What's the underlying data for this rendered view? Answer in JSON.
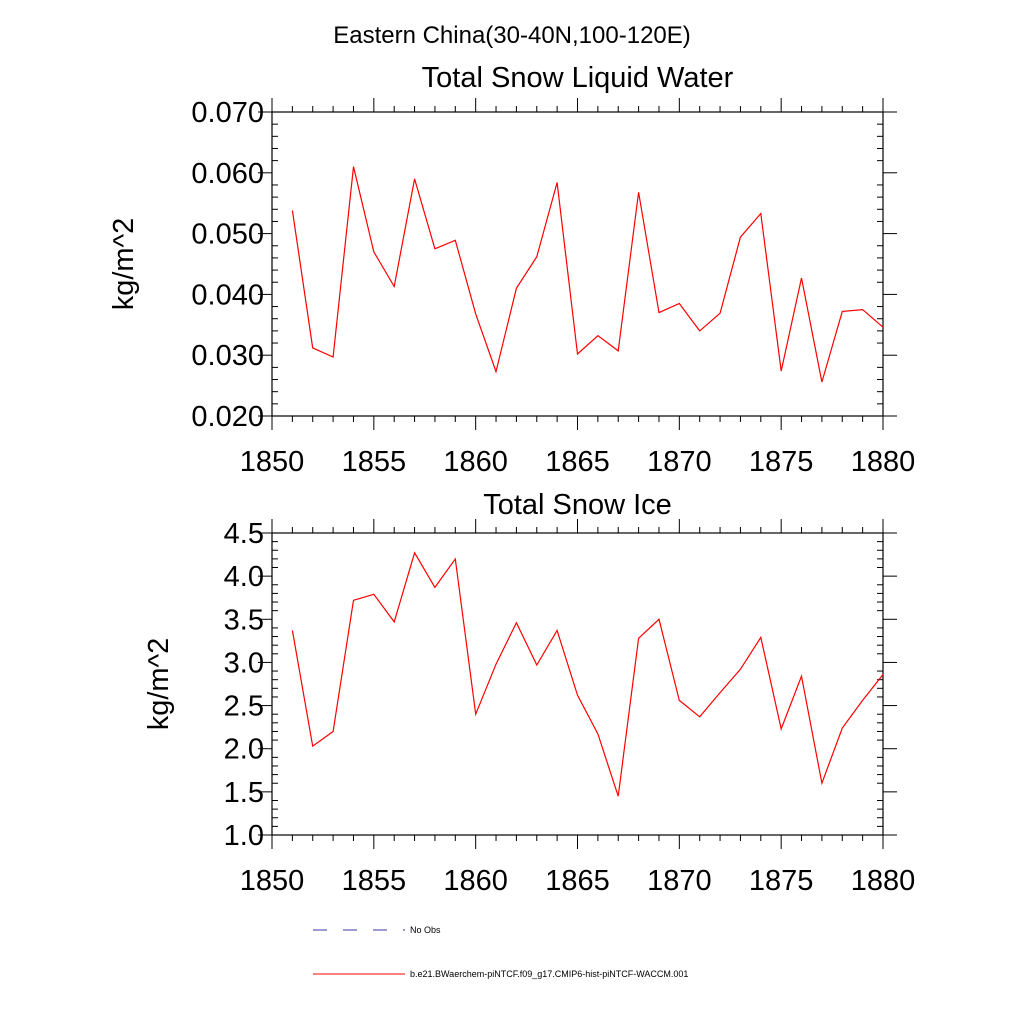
{
  "header": {
    "title": "Eastern China(30-40N,100-120E)"
  },
  "legend": {
    "obs_label": "No Obs",
    "model_label": "b.e21.BWaerchem-piNTCF.f09_g17.CMIP6-hist-piNTCF-WACCM.001",
    "obs_color": "#3a3aa0",
    "model_color": "#ff0000"
  },
  "chart_data": [
    {
      "type": "line",
      "title": "Total Snow Liquid Water",
      "xlabel": "",
      "ylabel": "kg/m^2",
      "xlim": [
        1850,
        1880
      ],
      "ylim": [
        0.02,
        0.07
      ],
      "xticks": [
        "1850",
        "1855",
        "1860",
        "1865",
        "1870",
        "1875",
        "1880"
      ],
      "yticks": [
        "0.020",
        "0.030",
        "0.040",
        "0.050",
        "0.060",
        "0.070"
      ],
      "grid": false,
      "series": [
        {
          "name": "b.e21.BWaerchem-piNTCF.f09_g17.CMIP6-hist-piNTCF-WACCM.001",
          "color": "#ff0000",
          "x": [
            1851,
            1852,
            1853,
            1854,
            1855,
            1856,
            1857,
            1858,
            1859,
            1860,
            1861,
            1862,
            1863,
            1864,
            1865,
            1866,
            1867,
            1868,
            1869,
            1870,
            1871,
            1872,
            1873,
            1874,
            1875,
            1876,
            1877,
            1878,
            1879,
            1880
          ],
          "values": [
            0.0538,
            0.0312,
            0.0297,
            0.061,
            0.047,
            0.0413,
            0.059,
            0.0475,
            0.0489,
            0.0368,
            0.0273,
            0.041,
            0.0462,
            0.0584,
            0.0302,
            0.0332,
            0.0307,
            0.0568,
            0.037,
            0.0385,
            0.034,
            0.0369,
            0.0494,
            0.0533,
            0.0274,
            0.0427,
            0.0256,
            0.0372,
            0.0375,
            0.0346
          ]
        }
      ]
    },
    {
      "type": "line",
      "title": "Total Snow Ice",
      "xlabel": "",
      "ylabel": "kg/m^2",
      "xlim": [
        1850,
        1880
      ],
      "ylim": [
        1.0,
        4.5
      ],
      "xticks": [
        "1850",
        "1855",
        "1860",
        "1865",
        "1870",
        "1875",
        "1880"
      ],
      "yticks": [
        "1.0",
        "1.5",
        "2.0",
        "2.5",
        "3.0",
        "3.5",
        "4.0",
        "4.5"
      ],
      "grid": false,
      "series": [
        {
          "name": "b.e21.BWaerchem-piNTCF.f09_g17.CMIP6-hist-piNTCF-WACCM.001",
          "color": "#ff0000",
          "x": [
            1851,
            1852,
            1853,
            1854,
            1855,
            1856,
            1857,
            1858,
            1859,
            1860,
            1861,
            1862,
            1863,
            1864,
            1865,
            1866,
            1867,
            1868,
            1869,
            1870,
            1871,
            1872,
            1873,
            1874,
            1875,
            1876,
            1877,
            1878,
            1879,
            1880
          ],
          "values": [
            3.37,
            2.03,
            2.2,
            3.72,
            3.79,
            3.47,
            4.27,
            3.87,
            4.2,
            2.4,
            2.98,
            3.46,
            2.97,
            3.37,
            2.62,
            2.17,
            1.45,
            3.28,
            3.5,
            2.56,
            2.37,
            2.65,
            2.92,
            3.29,
            2.23,
            2.84,
            1.6,
            2.24,
            2.56,
            2.86
          ]
        }
      ]
    }
  ]
}
